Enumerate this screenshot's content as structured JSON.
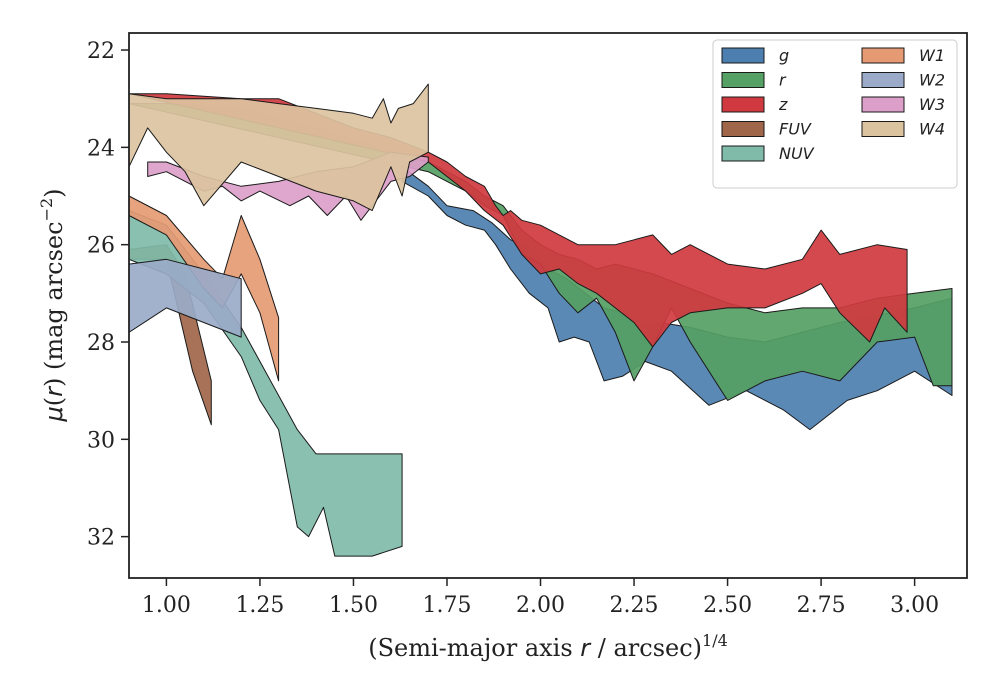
{
  "chart_data": {
    "type": "area",
    "xlabel": "(Semi-major axis r / arcsec)^1/4",
    "ylabel": "μ(r) (mag arcsec^−2)",
    "xlim": [
      0.9,
      3.14
    ],
    "ylim": [
      32.85,
      21.65
    ],
    "y_inverted": true,
    "x_ticks": [
      "1.00",
      "1.25",
      "1.50",
      "1.75",
      "2.00",
      "2.25",
      "2.50",
      "2.75",
      "3.00"
    ],
    "y_ticks": [
      "22",
      "24",
      "26",
      "28",
      "30",
      "32"
    ],
    "legend_placement": "top-right",
    "legend_columns": 2,
    "series": [
      {
        "name": "g",
        "color": "#4c7fb0",
        "upper": [
          [
            1.63,
            24.4
          ],
          [
            1.7,
            24.8
          ],
          [
            1.75,
            25.2
          ],
          [
            1.82,
            25.3
          ],
          [
            1.87,
            25.55
          ],
          [
            1.92,
            25.9
          ],
          [
            1.97,
            26.05
          ],
          [
            2.02,
            26.5
          ],
          [
            2.07,
            26.7
          ],
          [
            2.12,
            27.0
          ],
          [
            2.17,
            27.3
          ],
          [
            2.22,
            27.4
          ],
          [
            2.27,
            27.6
          ],
          [
            2.32,
            27.6
          ],
          [
            2.4,
            27.7
          ],
          [
            2.5,
            27.9
          ],
          [
            2.6,
            28.0
          ],
          [
            2.8,
            27.6
          ],
          [
            3.0,
            27.3
          ],
          [
            3.1,
            27.1
          ]
        ],
        "lower": [
          [
            1.63,
            24.7
          ],
          [
            1.7,
            25.0
          ],
          [
            1.75,
            25.4
          ],
          [
            1.8,
            25.6
          ],
          [
            1.85,
            25.7
          ],
          [
            1.88,
            26.0
          ],
          [
            1.92,
            26.5
          ],
          [
            1.97,
            27.0
          ],
          [
            2.02,
            27.3
          ],
          [
            2.05,
            28.0
          ],
          [
            2.09,
            27.9
          ],
          [
            2.13,
            28.0
          ],
          [
            2.17,
            28.8
          ],
          [
            2.22,
            28.7
          ],
          [
            2.28,
            28.4
          ],
          [
            2.35,
            28.6
          ],
          [
            2.45,
            29.3
          ],
          [
            2.55,
            29.0
          ],
          [
            2.65,
            29.4
          ],
          [
            2.72,
            29.8
          ],
          [
            2.82,
            29.2
          ],
          [
            2.9,
            29.0
          ],
          [
            3.0,
            28.6
          ],
          [
            3.1,
            29.1
          ]
        ]
      },
      {
        "name": "r",
        "color": "#55a064",
        "upper": [
          [
            0.9,
            23.1
          ],
          [
            1.0,
            23.1
          ],
          [
            1.2,
            23.2
          ],
          [
            1.4,
            23.6
          ],
          [
            1.6,
            24.1
          ],
          [
            1.7,
            24.3
          ],
          [
            1.75,
            24.5
          ],
          [
            1.8,
            24.7
          ],
          [
            1.85,
            25.0
          ],
          [
            1.9,
            25.2
          ],
          [
            1.95,
            25.7
          ],
          [
            2.0,
            26.0
          ],
          [
            2.05,
            26.2
          ],
          [
            2.1,
            26.3
          ],
          [
            2.15,
            26.5
          ],
          [
            2.2,
            26.4
          ],
          [
            2.3,
            26.6
          ],
          [
            2.4,
            26.9
          ],
          [
            2.5,
            27.2
          ],
          [
            2.6,
            27.4
          ],
          [
            2.7,
            27.3
          ],
          [
            2.8,
            27.3
          ],
          [
            2.9,
            27.1
          ],
          [
            3.0,
            27.0
          ],
          [
            3.1,
            26.9
          ]
        ],
        "lower": [
          [
            1.7,
            24.5
          ],
          [
            1.75,
            24.7
          ],
          [
            1.8,
            24.9
          ],
          [
            1.85,
            25.2
          ],
          [
            1.9,
            25.4
          ],
          [
            1.95,
            26.2
          ],
          [
            2.0,
            26.4
          ],
          [
            2.05,
            27.0
          ],
          [
            2.1,
            27.4
          ],
          [
            2.15,
            27.1
          ],
          [
            2.2,
            27.8
          ],
          [
            2.25,
            28.8
          ],
          [
            2.3,
            28.1
          ],
          [
            2.35,
            27.3
          ],
          [
            2.4,
            28.0
          ],
          [
            2.5,
            29.2
          ],
          [
            2.6,
            28.8
          ],
          [
            2.7,
            28.6
          ],
          [
            2.8,
            28.8
          ],
          [
            2.9,
            28.0
          ],
          [
            3.0,
            27.9
          ],
          [
            3.05,
            28.9
          ],
          [
            3.1,
            28.9
          ]
        ]
      },
      {
        "name": "z",
        "color": "#d0393f",
        "upper": [
          [
            0.9,
            22.9
          ],
          [
            1.0,
            22.9
          ],
          [
            1.2,
            23.0
          ],
          [
            1.3,
            23.0
          ],
          [
            1.5,
            23.6
          ],
          [
            1.6,
            23.8
          ],
          [
            1.7,
            24.1
          ],
          [
            1.75,
            24.3
          ],
          [
            1.8,
            24.6
          ],
          [
            1.85,
            24.8
          ],
          [
            1.88,
            25.2
          ],
          [
            1.9,
            25.4
          ],
          [
            1.92,
            25.3
          ],
          [
            1.95,
            25.5
          ],
          [
            2.0,
            25.6
          ],
          [
            2.05,
            25.8
          ],
          [
            2.1,
            26.0
          ],
          [
            2.2,
            26.0
          ],
          [
            2.25,
            25.9
          ],
          [
            2.3,
            25.8
          ],
          [
            2.35,
            26.2
          ],
          [
            2.4,
            26.0
          ],
          [
            2.5,
            26.4
          ],
          [
            2.6,
            26.5
          ],
          [
            2.7,
            26.3
          ],
          [
            2.75,
            25.7
          ],
          [
            2.8,
            26.2
          ],
          [
            2.9,
            26.0
          ],
          [
            2.98,
            26.1
          ]
        ],
        "lower": [
          [
            1.7,
            24.3
          ],
          [
            1.75,
            24.6
          ],
          [
            1.8,
            24.9
          ],
          [
            1.85,
            25.3
          ],
          [
            1.9,
            25.6
          ],
          [
            1.95,
            26.2
          ],
          [
            2.0,
            26.6
          ],
          [
            2.05,
            26.5
          ],
          [
            2.1,
            26.8
          ],
          [
            2.15,
            27.0
          ],
          [
            2.2,
            27.3
          ],
          [
            2.25,
            27.6
          ],
          [
            2.3,
            28.1
          ],
          [
            2.35,
            27.6
          ],
          [
            2.4,
            27.4
          ],
          [
            2.5,
            27.3
          ],
          [
            2.6,
            27.3
          ],
          [
            2.7,
            27.0
          ],
          [
            2.75,
            26.8
          ],
          [
            2.8,
            27.4
          ],
          [
            2.88,
            28.0
          ],
          [
            2.92,
            27.3
          ],
          [
            2.98,
            27.8
          ]
        ]
      },
      {
        "name": "FUV",
        "color": "#a0664a",
        "upper": [
          [
            0.9,
            26.1
          ],
          [
            1.0,
            26.0
          ],
          [
            1.05,
            26.6
          ],
          [
            1.12,
            28.8
          ]
        ],
        "lower": [
          [
            0.9,
            26.3
          ],
          [
            1.0,
            26.3
          ],
          [
            1.07,
            28.6
          ],
          [
            1.12,
            29.7
          ]
        ]
      },
      {
        "name": "NUV",
        "color": "#7fbba8",
        "upper": [
          [
            0.9,
            25.3
          ],
          [
            1.0,
            25.6
          ],
          [
            1.1,
            26.6
          ],
          [
            1.2,
            27.7
          ],
          [
            1.3,
            29.1
          ],
          [
            1.35,
            29.8
          ],
          [
            1.4,
            30.3
          ],
          [
            1.5,
            30.3
          ],
          [
            1.63,
            30.3
          ]
        ],
        "lower": [
          [
            0.9,
            26.3
          ],
          [
            1.0,
            26.6
          ],
          [
            1.1,
            27.2
          ],
          [
            1.2,
            28.3
          ],
          [
            1.25,
            29.2
          ],
          [
            1.3,
            29.8
          ],
          [
            1.35,
            31.8
          ],
          [
            1.38,
            32.0
          ],
          [
            1.42,
            31.4
          ],
          [
            1.45,
            32.4
          ],
          [
            1.55,
            32.4
          ],
          [
            1.63,
            32.2
          ]
        ]
      },
      {
        "name": "W1",
        "color": "#e59a73",
        "upper": [
          [
            0.9,
            25.0
          ],
          [
            1.0,
            25.4
          ],
          [
            1.1,
            26.3
          ],
          [
            1.15,
            26.7
          ],
          [
            1.2,
            25.4
          ],
          [
            1.25,
            26.3
          ],
          [
            1.3,
            27.5
          ]
        ],
        "lower": [
          [
            0.9,
            25.4
          ],
          [
            1.0,
            25.8
          ],
          [
            1.1,
            26.9
          ],
          [
            1.15,
            27.3
          ],
          [
            1.2,
            26.6
          ],
          [
            1.25,
            27.4
          ],
          [
            1.3,
            28.8
          ]
        ]
      },
      {
        "name": "W2",
        "color": "#9aaac8",
        "upper": [
          [
            0.9,
            26.4
          ],
          [
            1.0,
            26.3
          ],
          [
            1.1,
            26.5
          ],
          [
            1.2,
            26.7
          ]
        ],
        "lower": [
          [
            0.9,
            27.8
          ],
          [
            1.0,
            27.3
          ],
          [
            1.1,
            27.6
          ],
          [
            1.2,
            27.9
          ]
        ]
      },
      {
        "name": "W3",
        "color": "#dc9fc9",
        "upper": [
          [
            0.95,
            24.3
          ],
          [
            1.0,
            24.3
          ],
          [
            1.1,
            24.6
          ],
          [
            1.2,
            24.8
          ],
          [
            1.3,
            24.7
          ],
          [
            1.4,
            24.5
          ],
          [
            1.5,
            24.4
          ],
          [
            1.6,
            24.1
          ],
          [
            1.7,
            24.2
          ]
        ],
        "lower": [
          [
            0.95,
            24.6
          ],
          [
            1.0,
            24.5
          ],
          [
            1.1,
            24.9
          ],
          [
            1.15,
            24.8
          ],
          [
            1.2,
            25.1
          ],
          [
            1.25,
            24.9
          ],
          [
            1.33,
            25.2
          ],
          [
            1.38,
            25.0
          ],
          [
            1.43,
            25.4
          ],
          [
            1.48,
            25.0
          ],
          [
            1.52,
            25.5
          ],
          [
            1.57,
            25.0
          ],
          [
            1.6,
            24.7
          ],
          [
            1.65,
            24.6
          ],
          [
            1.7,
            24.3
          ]
        ]
      },
      {
        "name": "W4",
        "color": "#dcc3a0",
        "upper": [
          [
            0.9,
            22.9
          ],
          [
            1.0,
            23.0
          ],
          [
            1.1,
            23.0
          ],
          [
            1.2,
            23.0
          ],
          [
            1.3,
            23.1
          ],
          [
            1.4,
            23.2
          ],
          [
            1.5,
            23.3
          ],
          [
            1.55,
            23.4
          ],
          [
            1.58,
            23.0
          ],
          [
            1.6,
            23.5
          ],
          [
            1.62,
            23.2
          ],
          [
            1.66,
            23.1
          ],
          [
            1.7,
            22.7
          ]
        ],
        "lower": [
          [
            0.9,
            24.4
          ],
          [
            0.95,
            23.6
          ],
          [
            1.0,
            24.1
          ],
          [
            1.05,
            24.5
          ],
          [
            1.1,
            25.2
          ],
          [
            1.2,
            24.3
          ],
          [
            1.3,
            24.6
          ],
          [
            1.4,
            24.9
          ],
          [
            1.5,
            25.1
          ],
          [
            1.55,
            25.3
          ],
          [
            1.6,
            24.4
          ],
          [
            1.63,
            25.0
          ],
          [
            1.65,
            24.3
          ],
          [
            1.7,
            24.1
          ]
        ]
      }
    ]
  }
}
